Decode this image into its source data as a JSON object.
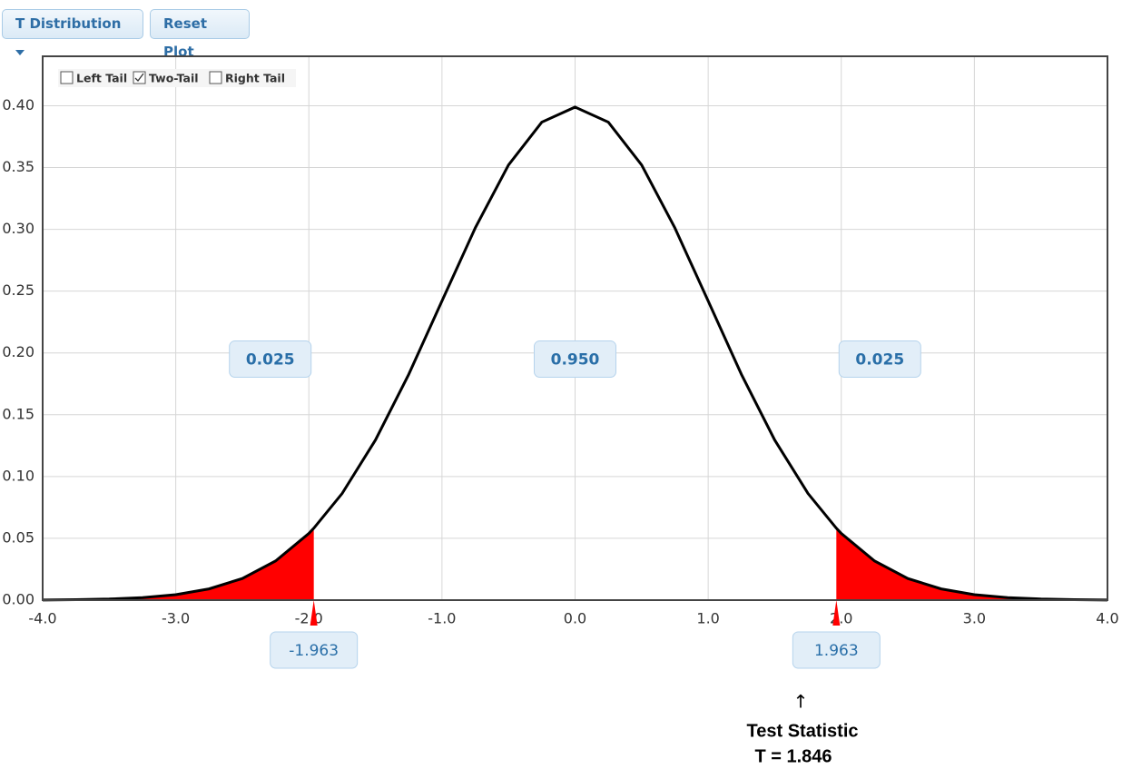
{
  "toolbar": {
    "distribution_button": "T Distribution",
    "reset_button": "Reset Plot"
  },
  "tail_options": [
    {
      "label": "Left Tail",
      "checked": false
    },
    {
      "label": "Two-Tail",
      "checked": true
    },
    {
      "label": "Right Tail",
      "checked": false
    }
  ],
  "chart_data": {
    "type": "density",
    "x": [
      -4,
      -3.75,
      -3.5,
      -3.25,
      -3,
      -2.75,
      -2.5,
      -2.25,
      -2,
      -1.963,
      -1.75,
      -1.5,
      -1.25,
      -1,
      -0.75,
      -0.5,
      -0.25,
      0,
      0.25,
      0.5,
      0.75,
      1,
      1.25,
      1.5,
      1.75,
      1.963,
      2,
      2.25,
      2.5,
      2.75,
      3,
      3.25,
      3.5,
      3.75,
      4
    ],
    "values": [
      0.0001,
      0.0004,
      0.0009,
      0.002,
      0.0044,
      0.0091,
      0.0175,
      0.0317,
      0.054,
      0.0582,
      0.0863,
      0.1295,
      0.1826,
      0.242,
      0.3011,
      0.3521,
      0.3867,
      0.3989,
      0.3867,
      0.3521,
      0.3011,
      0.242,
      0.1826,
      0.1295,
      0.0863,
      0.0582,
      0.054,
      0.0317,
      0.0175,
      0.0091,
      0.0044,
      0.002,
      0.0009,
      0.0004,
      0.0001
    ],
    "color": "#000000",
    "fill_color": "#ff0000",
    "critical_values": [
      -1.963,
      1.963
    ],
    "areas": [
      0.025,
      0.95,
      0.025
    ],
    "area_labels": [
      "0.025",
      "0.950",
      "0.025"
    ],
    "xlim": [
      -4,
      4
    ],
    "ylim": [
      0,
      0.44
    ],
    "xticks": [
      {
        "value": -4,
        "label": "-4.0"
      },
      {
        "value": -3,
        "label": "-3.0"
      },
      {
        "value": -2,
        "label": "-2.0"
      },
      {
        "value": -1,
        "label": "-1.0"
      },
      {
        "value": 0,
        "label": "0.0"
      },
      {
        "value": 1,
        "label": "1.0"
      },
      {
        "value": 2,
        "label": "2.0"
      },
      {
        "value": 3,
        "label": "3.0"
      },
      {
        "value": 4,
        "label": "4.0"
      }
    ],
    "yticks": [
      {
        "value": 0,
        "label": "0.00"
      },
      {
        "value": 0.05,
        "label": "0.05"
      },
      {
        "value": 0.1,
        "label": "0.10"
      },
      {
        "value": 0.15,
        "label": "0.15"
      },
      {
        "value": 0.2,
        "label": "0.20"
      },
      {
        "value": 0.25,
        "label": "0.25"
      },
      {
        "value": 0.3,
        "label": "0.30"
      },
      {
        "value": 0.35,
        "label": "0.35"
      },
      {
        "value": 0.4,
        "label": "0.40"
      }
    ],
    "grid": true,
    "annotation": {
      "arrow": "↑",
      "title": "Test Statistic",
      "text": "T = 1.846"
    }
  }
}
